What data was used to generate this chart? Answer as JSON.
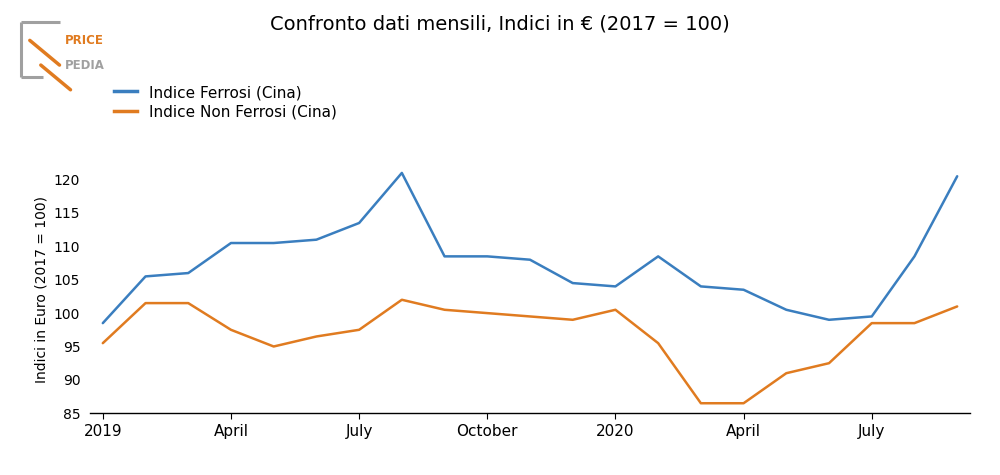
{
  "title": "Confronto dati mensili, Indici in € (2017 = 100)",
  "ylabel": "Indici in Euro (2017 = 100)",
  "ferrosi_color": "#3a7ebf",
  "nonferrosi_color": "#e07b20",
  "ferrosi_label": "Indice Ferrosi (Cina)",
  "nonferrosi_label": "Indice Non Ferrosi (Cina)",
  "ferrosi_values": [
    98.5,
    105.5,
    106.0,
    110.5,
    110.5,
    111.0,
    113.5,
    121.0,
    108.5,
    108.5,
    108.0,
    104.5,
    104.0,
    108.5,
    104.0,
    103.5,
    100.5,
    99.0,
    99.5,
    108.5,
    120.5
  ],
  "nonferrosi_values": [
    95.5,
    101.5,
    101.5,
    97.5,
    95.0,
    96.5,
    97.5,
    102.0,
    100.5,
    100.0,
    99.5,
    99.0,
    100.5,
    95.5,
    86.5,
    86.5,
    91.0,
    92.5,
    98.5,
    98.5,
    101.0
  ],
  "x_tick_labels": [
    "2019",
    "April",
    "July",
    "October",
    "2020",
    "April",
    "July"
  ],
  "x_tick_positions": [
    0,
    3,
    6,
    9,
    12,
    15,
    18
  ],
  "ylim": [
    85,
    122
  ],
  "yticks": [
    85,
    90,
    95,
    100,
    105,
    110,
    115,
    120
  ],
  "background_color": "#ffffff",
  "linewidth": 1.8,
  "logo_orange": "#e07b20",
  "logo_gray": "#a0a0a0"
}
